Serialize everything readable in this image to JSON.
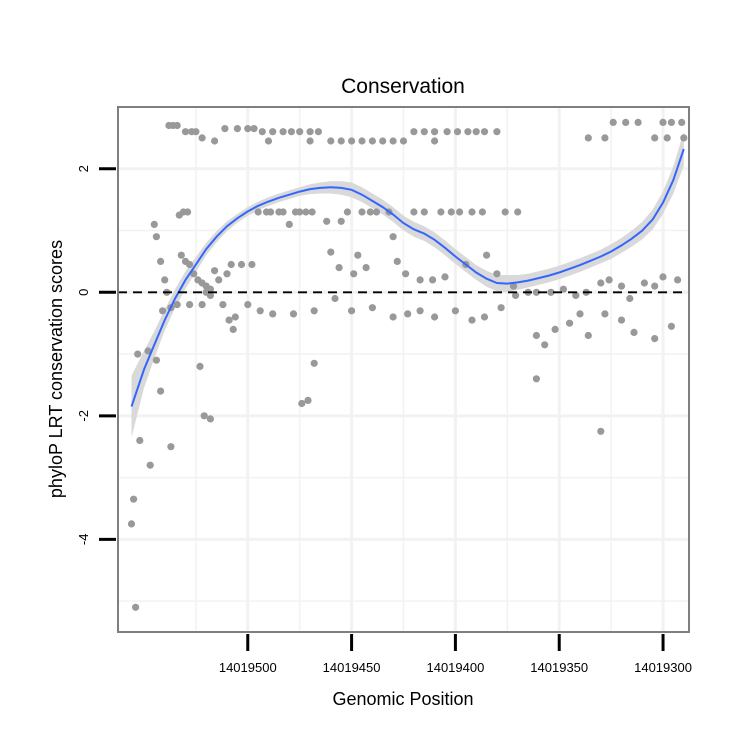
{
  "chart_data": {
    "type": "scatter",
    "title": "Conservation",
    "xlabel": "Genomic Position",
    "ylabel": "phyloP LRT conservation scores",
    "x_reversed": true,
    "xlim": [
      14019562.5,
      14019287.5
    ],
    "ylim": [
      -5.5,
      3.0
    ],
    "x_ticks": [
      14019500,
      14019450,
      14019400,
      14019350,
      14019300
    ],
    "x_tick_labels": [
      "14019500",
      "14019450",
      "14019400",
      "14019350",
      "14019300"
    ],
    "y_ticks": [
      2,
      0,
      -2,
      -4
    ],
    "y_tick_labels": [
      "2",
      "0",
      "-2",
      "-4"
    ],
    "reference_line_y": 0,
    "grid": true,
    "colors": {
      "points": "#999999",
      "smooth_line": "#3366FF",
      "ribbon": "#D9D9D9",
      "panel_border": "#7F7F7F",
      "grid": "#F2F2F2",
      "reference_line": "#000000"
    },
    "series": [
      {
        "name": "phyloP LRT scores",
        "kind": "points",
        "points": [
          [
            14019538,
            2.7
          ],
          [
            14019536,
            2.7
          ],
          [
            14019534,
            2.7
          ],
          [
            14019533,
            1.25
          ],
          [
            14019531,
            1.3
          ],
          [
            14019529,
            1.3
          ],
          [
            14019532,
            0.6
          ],
          [
            14019530,
            0.5
          ],
          [
            14019528,
            0.45
          ],
          [
            14019526,
            0.3
          ],
          [
            14019524,
            0.2
          ],
          [
            14019522,
            0.15
          ],
          [
            14019520,
            0.0
          ],
          [
            14019518,
            0.05
          ],
          [
            14019534,
            -0.2
          ],
          [
            14019520,
            0.1
          ],
          [
            14019516,
            0.35
          ],
          [
            14019514,
            0.2
          ],
          [
            14019510,
            0.3
          ],
          [
            14019508,
            0.45
          ],
          [
            14019503,
            0.45
          ],
          [
            14019498,
            0.45
          ],
          [
            14019495,
            1.3
          ],
          [
            14019491,
            1.3
          ],
          [
            14019489,
            1.3
          ],
          [
            14019485,
            1.3
          ],
          [
            14019483,
            1.3
          ],
          [
            14019480,
            1.1
          ],
          [
            14019477,
            1.3
          ],
          [
            14019475,
            1.3
          ],
          [
            14019472,
            1.3
          ],
          [
            14019469,
            1.3
          ],
          [
            14019462,
            1.15
          ],
          [
            14019455,
            1.15
          ],
          [
            14019452,
            1.3
          ],
          [
            14019445,
            1.3
          ],
          [
            14019441,
            1.3
          ],
          [
            14019438,
            1.3
          ],
          [
            14019432,
            1.3
          ],
          [
            14019420,
            1.3
          ],
          [
            14019415,
            1.3
          ],
          [
            14019407,
            1.3
          ],
          [
            14019402,
            1.3
          ],
          [
            14019398,
            1.3
          ],
          [
            14019392,
            1.3
          ],
          [
            14019387,
            1.3
          ],
          [
            14019376,
            1.3
          ],
          [
            14019370,
            1.3
          ],
          [
            14019460,
            0.65
          ],
          [
            14019456,
            0.4
          ],
          [
            14019449,
            0.3
          ],
          [
            14019447,
            0.6
          ],
          [
            14019443,
            0.4
          ],
          [
            14019430,
            0.9
          ],
          [
            14019428,
            0.5
          ],
          [
            14019424,
            0.3
          ],
          [
            14019417,
            0.2
          ],
          [
            14019411,
            0.2
          ],
          [
            14019405,
            0.25
          ],
          [
            14019395,
            0.45
          ],
          [
            14019385,
            0.6
          ],
          [
            14019380,
            0.3
          ],
          [
            14019372,
            0.1
          ],
          [
            14019365,
            0.0
          ],
          [
            14019361,
            0.0
          ],
          [
            14019354,
            0.0
          ],
          [
            14019348,
            0.05
          ],
          [
            14019342,
            -0.05
          ],
          [
            14019337,
            0.0
          ],
          [
            14019330,
            0.15
          ],
          [
            14019326,
            0.2
          ],
          [
            14019320,
            0.1
          ],
          [
            14019316,
            -0.1
          ],
          [
            14019309,
            0.15
          ],
          [
            14019304,
            0.1
          ],
          [
            14019300,
            0.25
          ],
          [
            14019293,
            0.2
          ],
          [
            14019545,
            1.1
          ],
          [
            14019544,
            0.9
          ],
          [
            14019542,
            0.5
          ],
          [
            14019540,
            0.2
          ],
          [
            14019539,
            0.0
          ],
          [
            14019541,
            -0.3
          ],
          [
            14019537,
            -0.25
          ],
          [
            14019528,
            -0.2
          ],
          [
            14019522,
            -0.2
          ],
          [
            14019518,
            -0.05
          ],
          [
            14019512,
            -0.2
          ],
          [
            14019509,
            -0.45
          ],
          [
            14019507,
            -0.6
          ],
          [
            14019506,
            -0.4
          ],
          [
            14019500,
            -0.2
          ],
          [
            14019494,
            -0.3
          ],
          [
            14019488,
            -0.35
          ],
          [
            14019478,
            -0.35
          ],
          [
            14019468,
            -0.3
          ],
          [
            14019458,
            -0.1
          ],
          [
            14019450,
            -0.3
          ],
          [
            14019440,
            -0.25
          ],
          [
            14019430,
            -0.4
          ],
          [
            14019423,
            -0.35
          ],
          [
            14019417,
            -0.3
          ],
          [
            14019410,
            -0.4
          ],
          [
            14019400,
            -0.3
          ],
          [
            14019392,
            -0.45
          ],
          [
            14019386,
            -0.4
          ],
          [
            14019378,
            -0.25
          ],
          [
            14019371,
            -0.05
          ],
          [
            14019361,
            -0.7
          ],
          [
            14019357,
            -0.85
          ],
          [
            14019352,
            -0.6
          ],
          [
            14019345,
            -0.5
          ],
          [
            14019340,
            -0.35
          ],
          [
            14019336,
            -0.7
          ],
          [
            14019328,
            -0.35
          ],
          [
            14019320,
            -0.45
          ],
          [
            14019314,
            -0.65
          ],
          [
            14019304,
            -0.75
          ],
          [
            14019296,
            -0.55
          ],
          [
            14019553,
            -1.0
          ],
          [
            14019548,
            -0.95
          ],
          [
            14019544,
            -1.1
          ],
          [
            14019542,
            -1.6
          ],
          [
            14019523,
            -1.2
          ],
          [
            14019521,
            -2.0
          ],
          [
            14019518,
            -2.05
          ],
          [
            14019474,
            -1.8
          ],
          [
            14019471,
            -1.75
          ],
          [
            14019468,
            -1.15
          ],
          [
            14019361,
            -1.4
          ],
          [
            14019555,
            -3.35
          ],
          [
            14019556,
            -3.75
          ],
          [
            14019552,
            -2.4
          ],
          [
            14019547,
            -2.8
          ],
          [
            14019537,
            -2.5
          ],
          [
            14019330,
            -2.25
          ],
          [
            14019554,
            -5.1
          ],
          [
            14019530,
            2.6
          ],
          [
            14019527,
            2.6
          ],
          [
            14019525,
            2.6
          ],
          [
            14019522,
            2.5
          ],
          [
            14019516,
            2.45
          ],
          [
            14019511,
            2.65
          ],
          [
            14019505,
            2.65
          ],
          [
            14019500,
            2.65
          ],
          [
            14019497,
            2.65
          ],
          [
            14019493,
            2.6
          ],
          [
            14019488,
            2.6
          ],
          [
            14019483,
            2.6
          ],
          [
            14019479,
            2.6
          ],
          [
            14019475,
            2.6
          ],
          [
            14019470,
            2.6
          ],
          [
            14019466,
            2.6
          ],
          [
            14019460,
            2.45
          ],
          [
            14019455,
            2.45
          ],
          [
            14019450,
            2.45
          ],
          [
            14019445,
            2.45
          ],
          [
            14019440,
            2.45
          ],
          [
            14019435,
            2.45
          ],
          [
            14019430,
            2.45
          ],
          [
            14019425,
            2.45
          ],
          [
            14019420,
            2.6
          ],
          [
            14019415,
            2.6
          ],
          [
            14019410,
            2.6
          ],
          [
            14019404,
            2.6
          ],
          [
            14019399,
            2.6
          ],
          [
            14019394,
            2.6
          ],
          [
            14019390,
            2.6
          ],
          [
            14019386,
            2.6
          ],
          [
            14019380,
            2.6
          ],
          [
            14019490,
            2.45
          ],
          [
            14019470,
            2.45
          ],
          [
            14019410,
            2.45
          ],
          [
            14019300,
            2.75
          ],
          [
            14019296,
            2.75
          ],
          [
            14019291,
            2.75
          ],
          [
            14019312,
            2.75
          ],
          [
            14019318,
            2.75
          ],
          [
            14019324,
            2.75
          ],
          [
            14019304,
            2.5
          ],
          [
            14019298,
            2.5
          ],
          [
            14019290,
            2.5
          ],
          [
            14019328,
            2.5
          ],
          [
            14019336,
            2.5
          ]
        ]
      },
      {
        "name": "smoothed fit",
        "kind": "line",
        "x": [
          14019556,
          14019550,
          14019545,
          14019540,
          14019535,
          14019530,
          14019525,
          14019520,
          14019515,
          14019510,
          14019505,
          14019500,
          14019495,
          14019490,
          14019485,
          14019480,
          14019475,
          14019470,
          14019465,
          14019460,
          14019455,
          14019450,
          14019445,
          14019440,
          14019435,
          14019430,
          14019425,
          14019420,
          14019415,
          14019410,
          14019405,
          14019400,
          14019395,
          14019390,
          14019385,
          14019380,
          14019375,
          14019370,
          14019365,
          14019360,
          14019355,
          14019350,
          14019345,
          14019340,
          14019335,
          14019330,
          14019325,
          14019320,
          14019315,
          14019310,
          14019305,
          14019300,
          14019295,
          14019290
        ],
        "y": [
          -1.85,
          -1.25,
          -0.85,
          -0.45,
          -0.1,
          0.2,
          0.45,
          0.7,
          0.9,
          1.07,
          1.2,
          1.31,
          1.4,
          1.47,
          1.53,
          1.58,
          1.63,
          1.67,
          1.69,
          1.7,
          1.69,
          1.66,
          1.58,
          1.48,
          1.38,
          1.26,
          1.12,
          1.02,
          0.95,
          0.85,
          0.72,
          0.58,
          0.45,
          0.32,
          0.22,
          0.15,
          0.14,
          0.16,
          0.19,
          0.23,
          0.27,
          0.32,
          0.38,
          0.44,
          0.51,
          0.58,
          0.66,
          0.76,
          0.87,
          1.0,
          1.18,
          1.45,
          1.82,
          2.32
        ],
        "ci_lower": [
          -2.35,
          -1.55,
          -1.07,
          -0.62,
          -0.25,
          0.06,
          0.33,
          0.6,
          0.81,
          0.99,
          1.13,
          1.24,
          1.33,
          1.4,
          1.46,
          1.51,
          1.56,
          1.59,
          1.6,
          1.6,
          1.58,
          1.54,
          1.46,
          1.36,
          1.26,
          1.14,
          1.0,
          0.9,
          0.83,
          0.73,
          0.6,
          0.46,
          0.33,
          0.2,
          0.09,
          0.02,
          0.0,
          0.04,
          0.08,
          0.12,
          0.16,
          0.21,
          0.27,
          0.33,
          0.4,
          0.47,
          0.54,
          0.64,
          0.74,
          0.86,
          1.02,
          1.27,
          1.6,
          2.05
        ],
        "ci_upper": [
          -1.35,
          -0.95,
          -0.63,
          -0.28,
          0.05,
          0.34,
          0.57,
          0.8,
          0.99,
          1.15,
          1.27,
          1.38,
          1.47,
          1.54,
          1.6,
          1.65,
          1.7,
          1.75,
          1.78,
          1.8,
          1.8,
          1.78,
          1.7,
          1.6,
          1.5,
          1.38,
          1.24,
          1.14,
          1.07,
          0.97,
          0.84,
          0.7,
          0.57,
          0.44,
          0.35,
          0.28,
          0.28,
          0.28,
          0.3,
          0.34,
          0.38,
          0.43,
          0.49,
          0.55,
          0.62,
          0.69,
          0.78,
          0.88,
          1.0,
          1.14,
          1.34,
          1.63,
          2.04,
          2.6
        ]
      }
    ]
  }
}
